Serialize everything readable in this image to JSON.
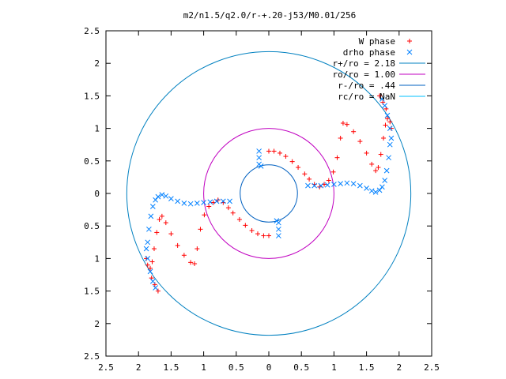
{
  "chart_data": {
    "type": "scatter",
    "title": "m2/n1.5/q2.0/r-+.20-j53/M0.01/256",
    "xlabel": "",
    "ylabel": "",
    "xlim": [
      -2.5,
      2.5
    ],
    "ylim": [
      -2.5,
      2.5
    ],
    "x_ticks": [
      -2.5,
      -2,
      -1.5,
      -1,
      -0.5,
      0,
      0.5,
      1,
      1.5,
      2,
      2.5
    ],
    "y_ticks": [
      -2.5,
      -2,
      -1.5,
      -1,
      -0.5,
      0,
      0.5,
      1,
      1.5,
      2,
      2.5
    ],
    "x_tick_labels": [
      "2.5",
      "2",
      "1.5",
      "1",
      "0.5",
      "0",
      "0.5",
      "1",
      "1.5",
      "2",
      "2.5"
    ],
    "y_tick_labels": [
      "2.5",
      "2",
      "1.5",
      "1",
      "0.5",
      "0",
      "0.5",
      "1",
      "1.5",
      "2",
      "2.5"
    ],
    "grid": false,
    "legend_position": "top-right",
    "series": [
      {
        "name": "W phase",
        "marker": "+",
        "color": "#ff0000",
        "points": [
          [
            0.0,
            0.65
          ],
          [
            0.08,
            0.65
          ],
          [
            0.17,
            0.62
          ],
          [
            0.26,
            0.57
          ],
          [
            0.36,
            0.49
          ],
          [
            0.45,
            0.4
          ],
          [
            0.55,
            0.3
          ],
          [
            0.62,
            0.22
          ],
          [
            0.7,
            0.14
          ],
          [
            0.78,
            0.1
          ],
          [
            0.85,
            0.14
          ],
          [
            0.92,
            0.2
          ],
          [
            0.99,
            0.33
          ],
          [
            1.05,
            0.55
          ],
          [
            1.1,
            0.85
          ],
          [
            1.14,
            1.08
          ],
          [
            1.2,
            1.06
          ],
          [
            1.3,
            0.95
          ],
          [
            1.4,
            0.8
          ],
          [
            1.5,
            0.62
          ],
          [
            1.58,
            0.45
          ],
          [
            1.64,
            0.35
          ],
          [
            1.68,
            0.4
          ],
          [
            1.72,
            0.6
          ],
          [
            1.76,
            0.85
          ],
          [
            1.79,
            1.05
          ],
          [
            1.82,
            1.15
          ],
          [
            1.86,
            1.1
          ],
          [
            1.88,
            1.0
          ],
          [
            1.8,
            1.3
          ],
          [
            1.75,
            1.4
          ],
          [
            1.7,
            1.5
          ],
          [
            0.0,
            -0.65
          ],
          [
            -0.08,
            -0.65
          ],
          [
            -0.17,
            -0.62
          ],
          [
            -0.26,
            -0.57
          ],
          [
            -0.36,
            -0.49
          ],
          [
            -0.45,
            -0.4
          ],
          [
            -0.55,
            -0.3
          ],
          [
            -0.62,
            -0.22
          ],
          [
            -0.7,
            -0.14
          ],
          [
            -0.78,
            -0.1
          ],
          [
            -0.85,
            -0.14
          ],
          [
            -0.92,
            -0.2
          ],
          [
            -0.99,
            -0.33
          ],
          [
            -1.05,
            -0.55
          ],
          [
            -1.1,
            -0.85
          ],
          [
            -1.14,
            -1.08
          ],
          [
            -1.2,
            -1.06
          ],
          [
            -1.3,
            -0.95
          ],
          [
            -1.4,
            -0.8
          ],
          [
            -1.5,
            -0.62
          ],
          [
            -1.58,
            -0.45
          ],
          [
            -1.64,
            -0.35
          ],
          [
            -1.68,
            -0.4
          ],
          [
            -1.72,
            -0.6
          ],
          [
            -1.76,
            -0.85
          ],
          [
            -1.79,
            -1.05
          ],
          [
            -1.82,
            -1.15
          ],
          [
            -1.86,
            -1.1
          ],
          [
            -1.88,
            -1.0
          ],
          [
            -1.8,
            -1.3
          ],
          [
            -1.75,
            -1.4
          ],
          [
            -1.7,
            -1.5
          ]
        ]
      },
      {
        "name": "drho phase",
        "marker": "x",
        "color": "#0080ff",
        "points": [
          [
            -0.15,
            0.65
          ],
          [
            -0.15,
            0.55
          ],
          [
            -0.15,
            0.45
          ],
          [
            -0.12,
            0.42
          ],
          [
            0.6,
            0.12
          ],
          [
            0.7,
            0.12
          ],
          [
            0.8,
            0.12
          ],
          [
            0.9,
            0.13
          ],
          [
            1.0,
            0.14
          ],
          [
            1.1,
            0.15
          ],
          [
            1.2,
            0.16
          ],
          [
            1.3,
            0.15
          ],
          [
            1.4,
            0.12
          ],
          [
            1.5,
            0.08
          ],
          [
            1.58,
            0.04
          ],
          [
            1.64,
            0.02
          ],
          [
            1.7,
            0.05
          ],
          [
            1.74,
            0.1
          ],
          [
            1.78,
            0.2
          ],
          [
            1.81,
            0.35
          ],
          [
            1.84,
            0.55
          ],
          [
            1.86,
            0.75
          ],
          [
            1.88,
            0.85
          ],
          [
            1.86,
            1.0
          ],
          [
            1.82,
            1.2
          ],
          [
            1.78,
            1.35
          ],
          [
            1.74,
            1.45
          ],
          [
            0.15,
            -0.65
          ],
          [
            0.15,
            -0.55
          ],
          [
            0.15,
            -0.45
          ],
          [
            0.12,
            -0.42
          ],
          [
            -0.6,
            -0.12
          ],
          [
            -0.7,
            -0.12
          ],
          [
            -0.8,
            -0.12
          ],
          [
            -0.9,
            -0.13
          ],
          [
            -1.0,
            -0.14
          ],
          [
            -1.1,
            -0.15
          ],
          [
            -1.2,
            -0.16
          ],
          [
            -1.3,
            -0.15
          ],
          [
            -1.4,
            -0.12
          ],
          [
            -1.5,
            -0.08
          ],
          [
            -1.58,
            -0.04
          ],
          [
            -1.64,
            -0.02
          ],
          [
            -1.7,
            -0.05
          ],
          [
            -1.74,
            -0.1
          ],
          [
            -1.78,
            -0.2
          ],
          [
            -1.81,
            -0.35
          ],
          [
            -1.84,
            -0.55
          ],
          [
            -1.86,
            -0.75
          ],
          [
            -1.88,
            -0.85
          ],
          [
            -1.86,
            -1.0
          ],
          [
            -1.82,
            -1.2
          ],
          [
            -1.78,
            -1.35
          ],
          [
            -1.74,
            -1.45
          ]
        ]
      },
      {
        "name": "r+/ro = 2.18",
        "type": "circle",
        "radius": 2.18,
        "color": "#0080c0"
      },
      {
        "name": "ro/ro = 1.00",
        "type": "circle",
        "radius": 1.0,
        "color": "#c000c0"
      },
      {
        "name": "r-/ro = .44",
        "type": "circle",
        "radius": 0.44,
        "color": "#0060c0"
      },
      {
        "name": "rc/ro = NaN",
        "type": "circle",
        "radius": null,
        "color": "#00c0ff"
      }
    ]
  }
}
